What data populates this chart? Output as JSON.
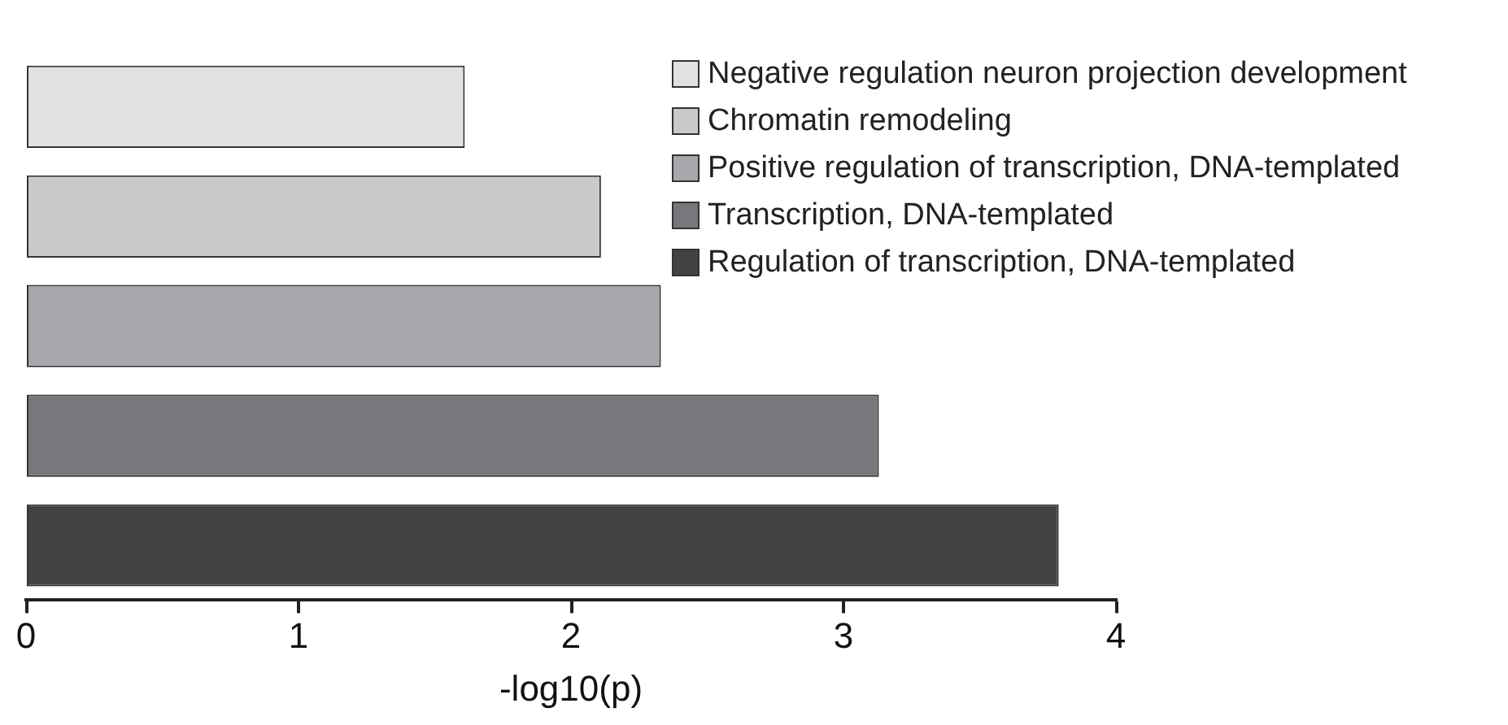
{
  "chart_data": {
    "type": "bar",
    "orientation": "horizontal",
    "stacked": true,
    "xlabel": "-log10(p)",
    "categories": [
      null,
      null,
      null,
      null,
      null
    ],
    "series": [
      {
        "name": "Negative regulation neuron projection development",
        "color": "#e0e1e3",
        "values": [
          1.61,
          null,
          null,
          null,
          null
        ]
      },
      {
        "name": "Chromatin remodeling",
        "color": "#c8c9cb",
        "values": [
          null,
          2.11,
          null,
          null,
          null
        ]
      },
      {
        "name": "Positive regulation of transcription, DNA-templated",
        "color": "#a6a7aa",
        "values": [
          null,
          null,
          2.33,
          null,
          null
        ]
      },
      {
        "name": "Transcription, DNA-templated",
        "color": "#77787b",
        "values": [
          null,
          null,
          null,
          3.13,
          null
        ]
      },
      {
        "name": "Regulation of transcription, DNA-templated",
        "color": "#414244",
        "values": [
          null,
          null,
          null,
          null,
          3.79
        ]
      }
    ],
    "xlim": [
      0,
      4
    ],
    "xticks": [
      0,
      1,
      2,
      3,
      4
    ],
    "legend": "top right"
  }
}
